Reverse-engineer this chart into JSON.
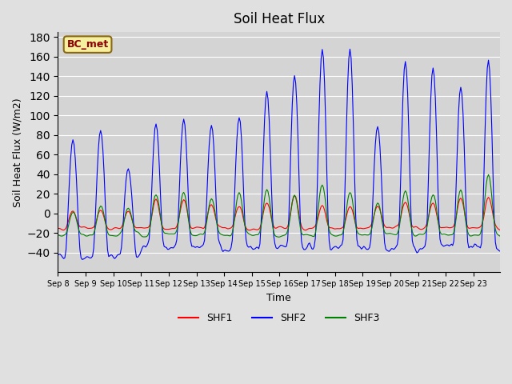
{
  "title": "Soil Heat Flux",
  "ylabel": "Soil Heat Flux (W/m2)",
  "xlabel": "Time",
  "ylim": [
    -60,
    185
  ],
  "yticks": [
    -40,
    -20,
    0,
    20,
    40,
    60,
    80,
    100,
    120,
    140,
    160,
    180
  ],
  "bg_color": "#e0e0e0",
  "plot_bg": "#d4d4d4",
  "legend_label": "BC_met",
  "series": [
    "SHF1",
    "SHF2",
    "SHF3"
  ],
  "colors": [
    "red",
    "blue",
    "green"
  ],
  "x_tick_labels": [
    "Sep 8",
    "Sep 9",
    "Sep 10",
    "Sep 11",
    "Sep 12",
    "Sep 13",
    "Sep 14",
    "Sep 15",
    "Sep 16",
    "Sep 17",
    "Sep 18",
    "Sep 19",
    "Sep 20",
    "Sep 21",
    "Sep 22",
    "Sep 23"
  ],
  "n_days": 16,
  "start_day": 8,
  "shf2_peaks": [
    80,
    90,
    48,
    96,
    102,
    95,
    105,
    130,
    148,
    178,
    175,
    95,
    163,
    159,
    138,
    163
  ],
  "shf1_peaks": [
    5,
    5,
    5,
    18,
    18,
    12,
    10,
    15,
    22,
    10,
    10,
    10,
    14,
    14,
    18,
    20
  ],
  "shf3_peaks": [
    5,
    10,
    8,
    25,
    25,
    20,
    25,
    30,
    22,
    35,
    25,
    15,
    28,
    25,
    28,
    45
  ]
}
